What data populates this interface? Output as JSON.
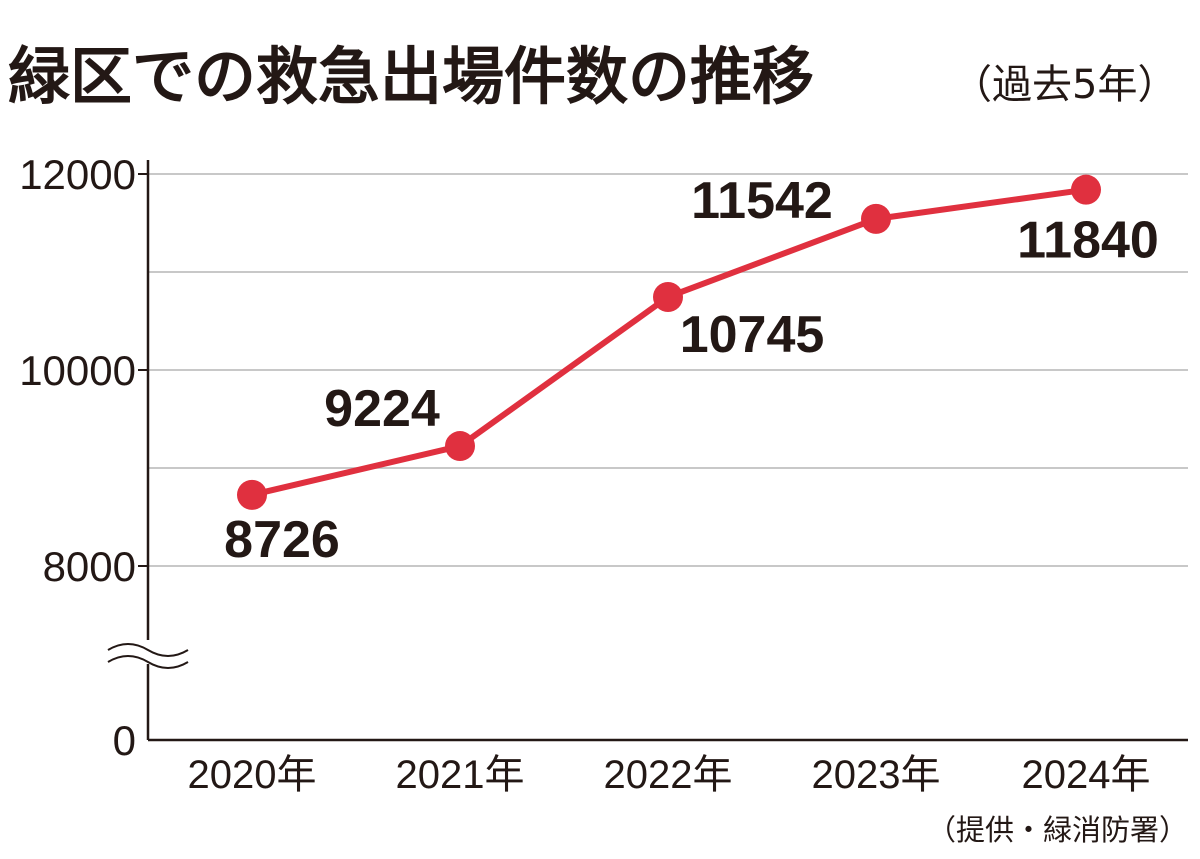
{
  "title": "緑区での救急出場件数の推移",
  "subtitle": "（過去5年）",
  "source": "（提供・緑消防署）",
  "colors": {
    "line": "#e0303f",
    "grid": "#b5b5b5",
    "axis": "#231815",
    "text": "#231815"
  },
  "chart_data": {
    "type": "line",
    "categories": [
      "2020年",
      "2021年",
      "2022年",
      "2023年",
      "2024年"
    ],
    "series": [
      {
        "values": [
          8726,
          9224,
          10745,
          11542,
          11840
        ]
      }
    ],
    "data_labels": [
      "8726",
      "9224",
      "10745",
      "11542",
      "11840"
    ],
    "yticks": [
      0,
      8000,
      10000,
      12000
    ],
    "ytick_labels": [
      "0",
      "8000",
      "10000",
      "12000"
    ],
    "ylim": [
      0,
      12000
    ],
    "axis_break": true,
    "grid": true,
    "xlabel": "",
    "ylabel": ""
  }
}
